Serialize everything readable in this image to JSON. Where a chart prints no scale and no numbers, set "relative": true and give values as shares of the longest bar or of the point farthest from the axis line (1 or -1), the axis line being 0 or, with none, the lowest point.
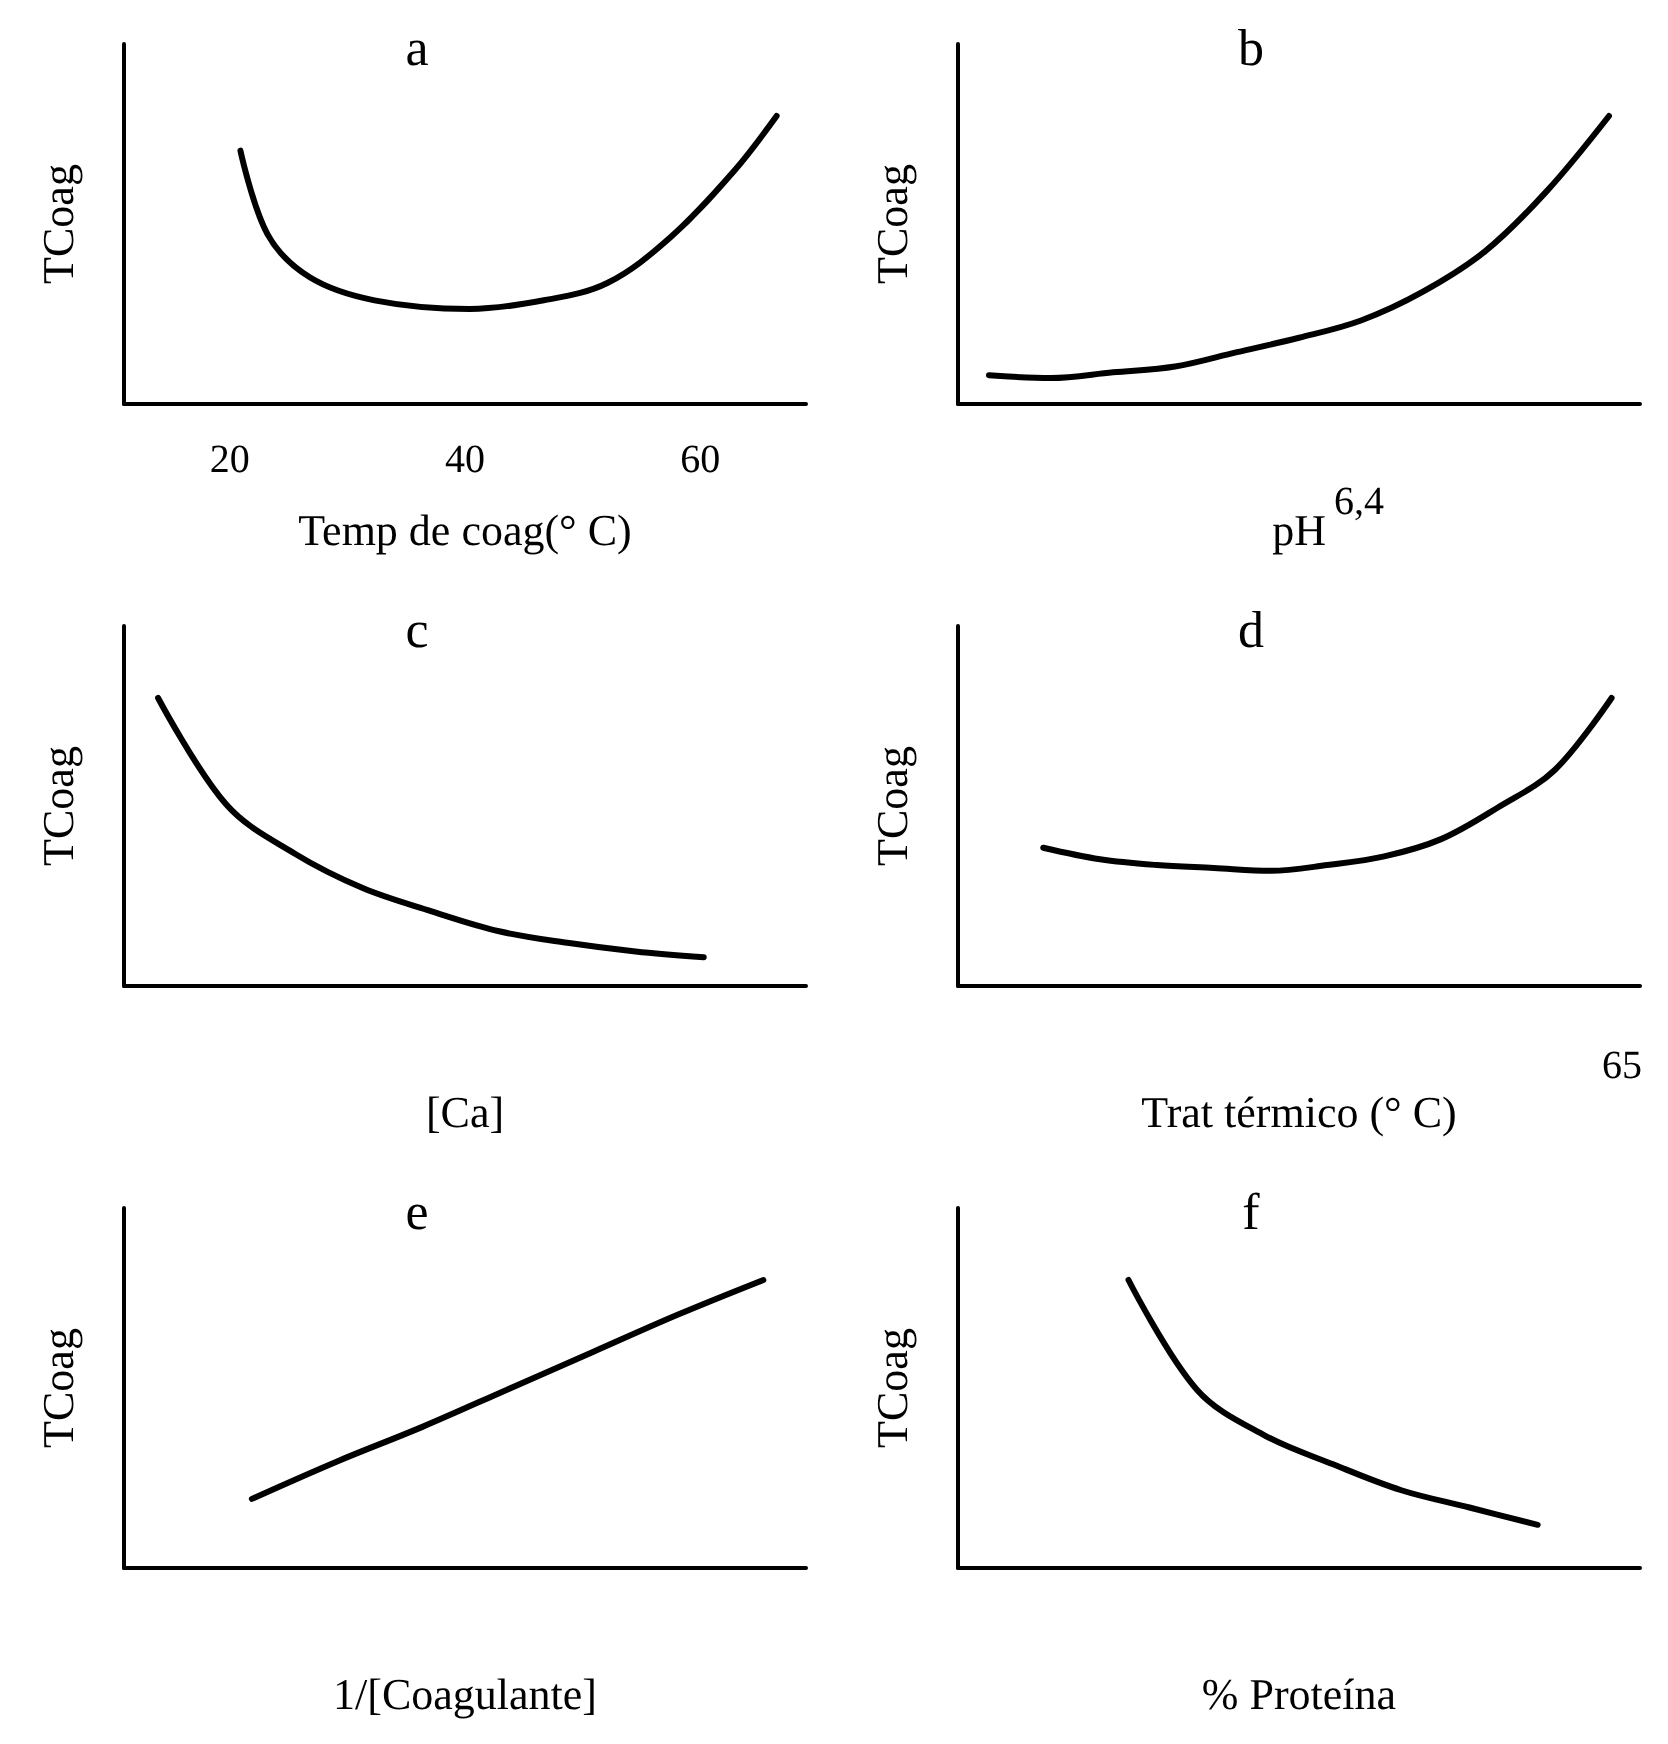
{
  "chart_data": [
    {
      "type": "line",
      "title": "a",
      "xlabel": "Temp de coag(° C)",
      "ylabel": "TCoag",
      "relative": true,
      "color": "#000000",
      "marker": "none",
      "xlim": [
        11,
        69
      ],
      "xticks": [
        20,
        40,
        60
      ],
      "x": [
        20.9,
        23.2,
        26.8,
        32.3,
        40.4,
        46.7,
        52.1,
        57.5,
        62.9,
        66.5
      ],
      "values": [
        0.88,
        0.59,
        0.44,
        0.36,
        0.33,
        0.36,
        0.42,
        0.58,
        0.81,
        1.0
      ]
    },
    {
      "type": "line",
      "title": "b",
      "xlabel": "pH",
      "ylabel": "TCoag",
      "relative": true,
      "color": "#000000",
      "marker": "none",
      "annotations": [
        "6,4"
      ],
      "categories": [
        null,
        null,
        null,
        null,
        null,
        null,
        null,
        null,
        null,
        null,
        null
      ],
      "values": [
        0.1,
        0.09,
        0.11,
        0.13,
        0.18,
        0.23,
        0.29,
        0.39,
        0.53,
        0.74,
        1.0
      ]
    },
    {
      "type": "line",
      "title": "c",
      "xlabel": "[Ca]",
      "ylabel": "TCoag",
      "relative": true,
      "color": "#000000",
      "marker": "none",
      "categories": [
        null,
        null,
        null,
        null,
        null,
        null,
        null,
        null,
        null,
        null
      ],
      "values": [
        1.0,
        0.63,
        0.46,
        0.34,
        0.26,
        0.19,
        0.15,
        0.12,
        0.1,
        null
      ]
    },
    {
      "type": "line",
      "title": "d",
      "xlabel": "Trat térmico (° C)",
      "ylabel": "TCoag",
      "relative": true,
      "color": "#000000",
      "marker": "none",
      "annotations": [
        "65"
      ],
      "categories": [
        null,
        null,
        null,
        null,
        null,
        null,
        null,
        null,
        null,
        null,
        null,
        null
      ],
      "values": [
        null,
        0.48,
        0.44,
        0.42,
        0.41,
        0.4,
        0.42,
        0.45,
        0.51,
        0.62,
        0.75,
        1.0
      ]
    },
    {
      "type": "line",
      "title": "e",
      "xlabel": "1/[Coagulante]",
      "ylabel": "TCoag",
      "relative": true,
      "color": "#000000",
      "marker": "none",
      "categories": [
        null,
        null,
        null,
        null,
        null,
        null,
        null,
        null
      ],
      "values": [
        null,
        0.24,
        0.37,
        0.49,
        0.62,
        0.75,
        0.88,
        1.0
      ]
    },
    {
      "type": "line",
      "title": "f",
      "xlabel": "% Proteína",
      "ylabel": "TCoag",
      "relative": true,
      "color": "#000000",
      "marker": "none",
      "categories": [
        null,
        null,
        null,
        null,
        null,
        null,
        null,
        null,
        null,
        null
      ],
      "values": [
        null,
        null,
        1.0,
        0.62,
        0.46,
        0.36,
        0.27,
        0.21,
        0.15,
        null
      ]
    }
  ]
}
